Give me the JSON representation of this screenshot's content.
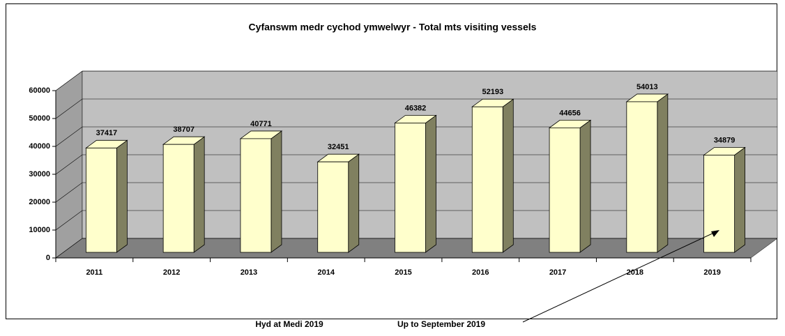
{
  "chart_data": {
    "type": "bar3d",
    "title": "Cyfanswm medr cychod ymwelwyr  -  Total mts visiting vessels",
    "categories": [
      "2011",
      "2012",
      "2013",
      "2014",
      "2015",
      "2016",
      "2017",
      "2018",
      "2019"
    ],
    "values": [
      37417,
      38707,
      40771,
      32451,
      46382,
      52193,
      44656,
      54013,
      34879
    ],
    "color": "#ffffcc",
    "ylim": [
      0,
      60000
    ],
    "yticks": [
      0,
      10000,
      20000,
      30000,
      40000,
      50000,
      60000
    ],
    "grid": true,
    "annotations": [
      "Hyd at Medi 2019",
      "Up to September 2019"
    ]
  }
}
